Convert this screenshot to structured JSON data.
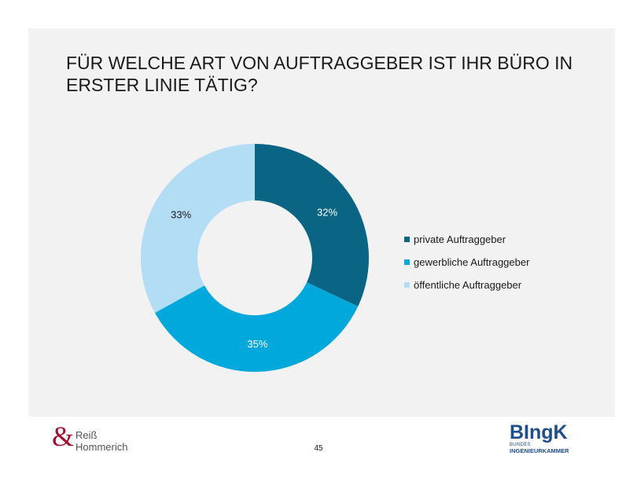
{
  "slide": {
    "title": "FÜR WELCHE ART VON AUFTRAGGEBER IST IHR BÜRO IN ERSTER LINIE TÄTIG?",
    "page_number": "45"
  },
  "logos": {
    "left_line1": "Reiß",
    "left_line2": "Hommerich",
    "right_main": "BIngK",
    "right_sub1": "BUNDES",
    "right_sub2": "INGENIEURKAMMER"
  },
  "chart_data": {
    "type": "pie",
    "donut": true,
    "categories": [
      "private Auftraggeber",
      "gewerbliche Auftraggeber",
      "öffentliche Auftraggeber"
    ],
    "values": [
      32,
      35,
      33
    ],
    "labels": [
      "32%",
      "35%",
      "33%"
    ],
    "colors": [
      "#0a6585",
      "#00a8dc",
      "#b3ddf4"
    ],
    "label_colors": [
      "#ffffff",
      "#ffffff",
      "#1a1a1a"
    ],
    "legend_position": "right",
    "start_angle_deg": 0,
    "direction": "clockwise"
  }
}
